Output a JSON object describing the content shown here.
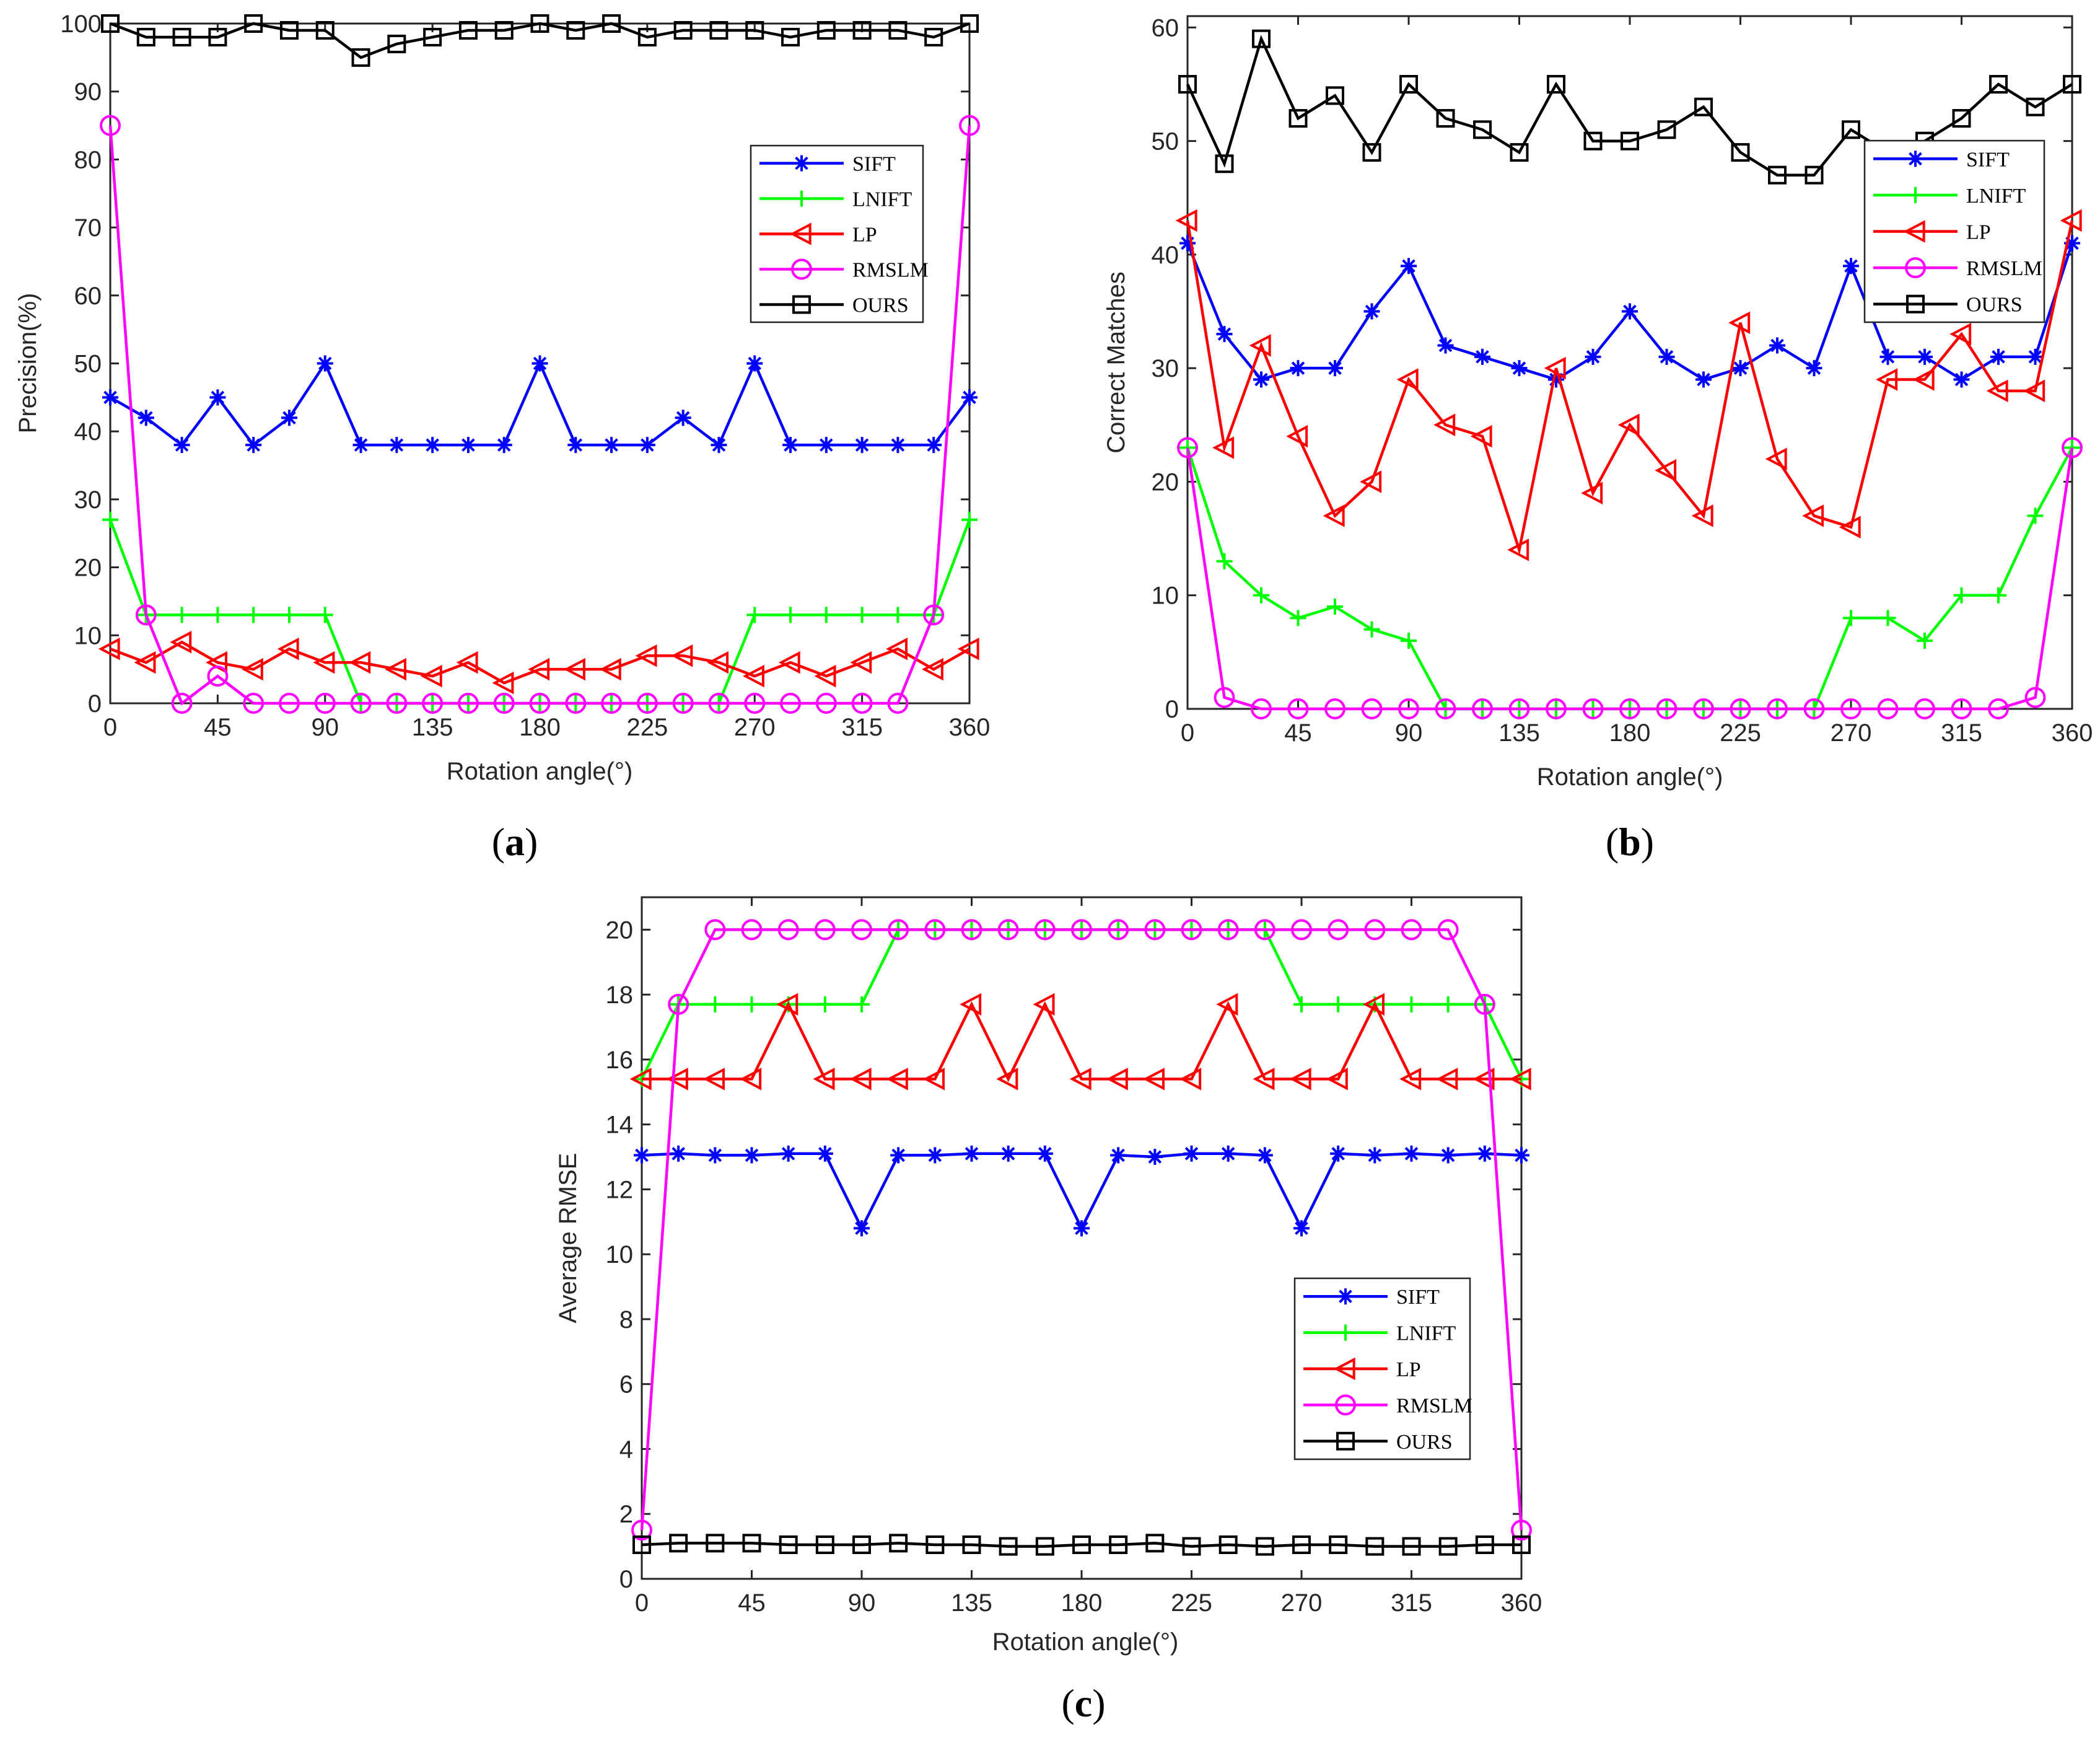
{
  "figure": {
    "panels": [
      "a",
      "b",
      "c"
    ]
  },
  "series_styles": [
    {
      "name": "SIFT",
      "color": "#0000ff",
      "marker": "star"
    },
    {
      "name": "LNIFT",
      "color": "#00ff00",
      "marker": "plus"
    },
    {
      "name": "LP",
      "color": "#ff0000",
      "marker": "triangle-left"
    },
    {
      "name": "RMSLM",
      "color": "#ff00ff",
      "marker": "circle"
    },
    {
      "name": "OURS",
      "color": "#000000",
      "marker": "square"
    }
  ],
  "chart_data": [
    {
      "type": "line",
      "panel_label": "(a)",
      "title": "",
      "xlabel": "Rotation angle(°)",
      "ylabel": "Precision(%)",
      "xlim": [
        0,
        360
      ],
      "ylim": [
        0,
        100
      ],
      "xticks": [
        0,
        45,
        90,
        135,
        180,
        225,
        270,
        315,
        360
      ],
      "yticks": [
        0,
        10,
        20,
        30,
        40,
        50,
        60,
        70,
        80,
        90,
        100
      ],
      "legend": "right-upper",
      "x": [
        0,
        15,
        30,
        45,
        60,
        75,
        90,
        105,
        120,
        135,
        150,
        165,
        180,
        195,
        210,
        225,
        240,
        255,
        270,
        285,
        300,
        315,
        330,
        345,
        360
      ],
      "series": [
        {
          "name": "SIFT",
          "values": [
            45,
            42,
            38,
            45,
            38,
            42,
            50,
            38,
            38,
            38,
            38,
            38,
            50,
            38,
            38,
            38,
            42,
            38,
            50,
            38,
            38,
            38,
            38,
            38,
            45
          ]
        },
        {
          "name": "LNIFT",
          "values": [
            27,
            13,
            13,
            13,
            13,
            13,
            13,
            0,
            0,
            0,
            0,
            0,
            0,
            0,
            0,
            0,
            0,
            0,
            13,
            13,
            13,
            13,
            13,
            13,
            27
          ]
        },
        {
          "name": "LP",
          "values": [
            8,
            6,
            9,
            6,
            5,
            8,
            6,
            6,
            5,
            4,
            6,
            3,
            5,
            5,
            5,
            7,
            7,
            6,
            4,
            6,
            4,
            6,
            8,
            5,
            8
          ]
        },
        {
          "name": "RMSLM",
          "values": [
            85,
            13,
            0,
            4,
            0,
            0,
            0,
            0,
            0,
            0,
            0,
            0,
            0,
            0,
            0,
            0,
            0,
            0,
            0,
            0,
            0,
            0,
            0,
            13,
            85
          ]
        },
        {
          "name": "OURS",
          "values": [
            100,
            98,
            98,
            98,
            100,
            99,
            99,
            95,
            97,
            98,
            99,
            99,
            100,
            99,
            100,
            98,
            99,
            99,
            99,
            98,
            99,
            99,
            99,
            98,
            100
          ]
        }
      ]
    },
    {
      "type": "line",
      "panel_label": "(b)",
      "title": "",
      "xlabel": "Rotation angle(°)",
      "ylabel": "Correct Matches",
      "xlim": [
        0,
        360
      ],
      "ylim": [
        0,
        61
      ],
      "xticks": [
        0,
        45,
        90,
        135,
        180,
        225,
        270,
        315,
        360
      ],
      "yticks": [
        0,
        10,
        20,
        30,
        40,
        50,
        60
      ],
      "legend": "right-upper",
      "x": [
        0,
        15,
        30,
        45,
        60,
        75,
        90,
        105,
        120,
        135,
        150,
        165,
        180,
        195,
        210,
        225,
        240,
        255,
        270,
        285,
        300,
        315,
        330,
        345,
        360
      ],
      "series": [
        {
          "name": "SIFT",
          "values": [
            41,
            33,
            29,
            30,
            30,
            35,
            39,
            32,
            31,
            30,
            29,
            31,
            35,
            31,
            29,
            30,
            32,
            30,
            39,
            31,
            31,
            29,
            31,
            31,
            41
          ]
        },
        {
          "name": "LNIFT",
          "values": [
            23,
            13,
            10,
            8,
            9,
            7,
            6,
            0,
            0,
            0,
            0,
            0,
            0,
            0,
            0,
            0,
            0,
            0,
            8,
            8,
            6,
            10,
            10,
            17,
            23
          ]
        },
        {
          "name": "LP",
          "values": [
            43,
            23,
            32,
            24,
            17,
            20,
            29,
            25,
            24,
            14,
            30,
            19,
            25,
            21,
            17,
            34,
            22,
            17,
            16,
            29,
            29,
            33,
            28,
            28,
            43
          ]
        },
        {
          "name": "RMSLM",
          "values": [
            23,
            1,
            0,
            0,
            0,
            0,
            0,
            0,
            0,
            0,
            0,
            0,
            0,
            0,
            0,
            0,
            0,
            0,
            0,
            0,
            0,
            0,
            0,
            1,
            23
          ]
        },
        {
          "name": "OURS",
          "values": [
            55,
            48,
            59,
            52,
            54,
            49,
            55,
            52,
            51,
            49,
            55,
            50,
            50,
            51,
            53,
            49,
            47,
            47,
            51,
            49,
            50,
            52,
            55,
            53,
            55
          ]
        }
      ]
    },
    {
      "type": "line",
      "panel_label": "(c)",
      "title": "",
      "xlabel": "Rotation angle(°)",
      "ylabel": "Average RMSE",
      "xlim": [
        0,
        360
      ],
      "ylim": [
        0,
        21
      ],
      "xticks": [
        0,
        45,
        90,
        135,
        180,
        225,
        270,
        315,
        360
      ],
      "yticks": [
        0,
        2,
        4,
        6,
        8,
        10,
        12,
        14,
        16,
        18,
        20
      ],
      "legend": "right-lower",
      "x": [
        0,
        15,
        30,
        45,
        60,
        75,
        90,
        105,
        120,
        135,
        150,
        165,
        180,
        195,
        210,
        225,
        240,
        255,
        270,
        285,
        300,
        315,
        330,
        345,
        360
      ],
      "series": [
        {
          "name": "SIFT",
          "values": [
            13.05,
            13.1,
            13.05,
            13.05,
            13.1,
            13.1,
            10.8,
            13.05,
            13.05,
            13.1,
            13.1,
            13.1,
            10.8,
            13.05,
            13.0,
            13.1,
            13.1,
            13.05,
            10.8,
            13.1,
            13.05,
            13.1,
            13.05,
            13.1,
            13.05
          ]
        },
        {
          "name": "LNIFT",
          "values": [
            15.4,
            17.7,
            17.7,
            17.7,
            17.7,
            17.7,
            17.7,
            20,
            20,
            20,
            20,
            20,
            20,
            20,
            20,
            20,
            20,
            20,
            17.7,
            17.7,
            17.7,
            17.7,
            17.7,
            17.7,
            15.4
          ]
        },
        {
          "name": "LP",
          "values": [
            15.4,
            15.4,
            15.4,
            15.4,
            17.7,
            15.4,
            15.4,
            15.4,
            15.4,
            17.7,
            15.4,
            17.7,
            15.4,
            15.4,
            15.4,
            15.4,
            17.7,
            15.4,
            15.4,
            15.4,
            17.7,
            15.4,
            15.4,
            15.4,
            15.4
          ]
        },
        {
          "name": "RMSLM",
          "values": [
            1.5,
            17.7,
            20,
            20,
            20,
            20,
            20,
            20,
            20,
            20,
            20,
            20,
            20,
            20,
            20,
            20,
            20,
            20,
            20,
            20,
            20,
            20,
            20,
            17.7,
            1.5
          ]
        },
        {
          "name": "OURS",
          "values": [
            1.05,
            1.1,
            1.1,
            1.1,
            1.05,
            1.05,
            1.05,
            1.1,
            1.05,
            1.05,
            1.0,
            1.0,
            1.05,
            1.05,
            1.1,
            1.0,
            1.05,
            1.0,
            1.05,
            1.05,
            1.0,
            1.0,
            1.0,
            1.05,
            1.05
          ]
        }
      ]
    }
  ]
}
